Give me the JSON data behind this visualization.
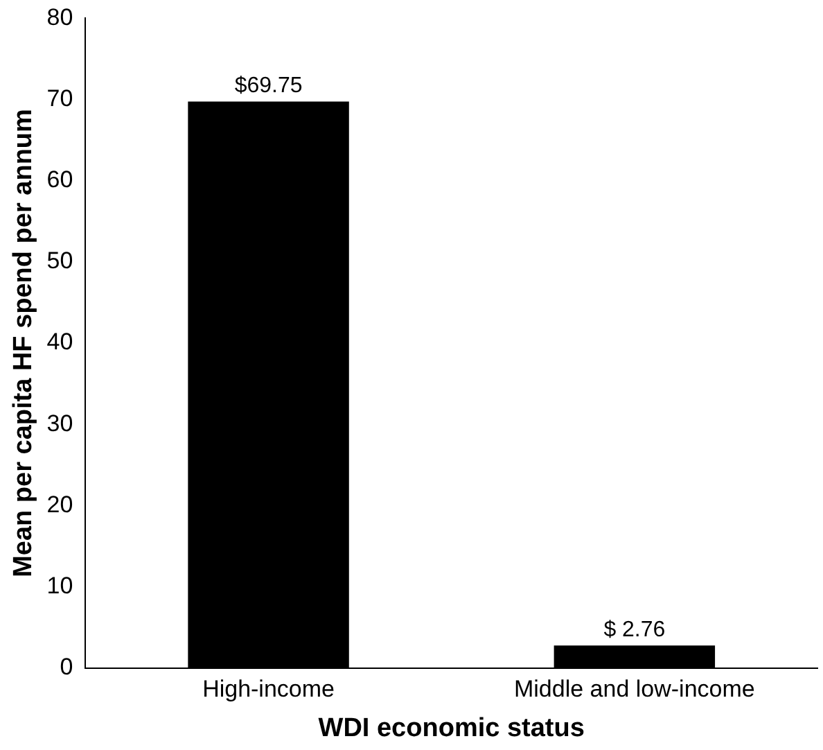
{
  "chart_data": {
    "type": "bar",
    "xlabel": "WDI economic status",
    "ylabel": "Mean per capita HF spend per annum",
    "categories": [
      "High-income",
      "Middle and low-income"
    ],
    "values": [
      69.75,
      2.76
    ],
    "color": "#000000",
    "value_labels": [
      "$69.75",
      "$ 2.76"
    ],
    "ylim": [
      0,
      80
    ],
    "yticks": [
      0,
      10,
      20,
      30,
      40,
      50,
      60,
      70,
      80
    ],
    "grid": false,
    "legend": false
  }
}
